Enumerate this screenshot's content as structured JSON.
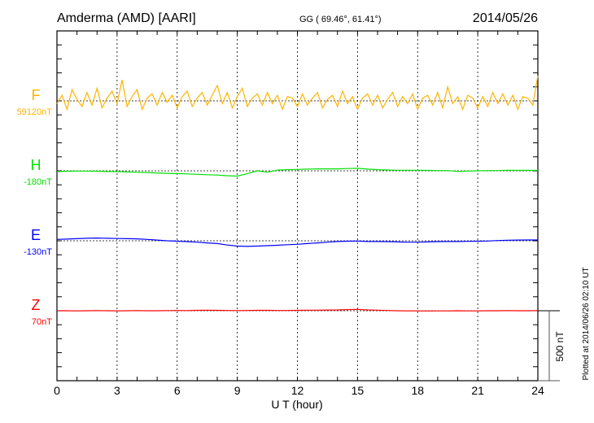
{
  "chart_data": {
    "type": "line",
    "title": "Amderma (AMD)  [AARI]",
    "coords": "GG ( 69.46°,  61.41°)",
    "date": "2014/05/26",
    "xlabel": "U T (hour)",
    "xlim": [
      0,
      24
    ],
    "xticks": [
      "0",
      "3",
      "6",
      "9",
      "12",
      "15",
      "18",
      "21",
      "24"
    ],
    "ylim_nT_span": 2500,
    "scale_bar_label": "500 nT",
    "scale_bar_nT": 500,
    "footer": "Plotted at 2014/06/26 02:10 UT",
    "grid": "dotted vertical every 3 h",
    "series": [
      {
        "name": "F",
        "baseline_label": "59120nT",
        "color": "#ffb400",
        "offset_nT": 500,
        "dt_hours": 0.25,
        "values": [
          -20,
          40,
          -60,
          80,
          10,
          -40,
          60,
          -30,
          90,
          -50,
          20,
          70,
          -20,
          150,
          -40,
          30,
          80,
          -60,
          20,
          50,
          -30,
          60,
          -10,
          40,
          -50,
          30,
          70,
          -40,
          20,
          60,
          -30,
          40,
          110,
          -20,
          60,
          -50,
          30,
          90,
          -40,
          20,
          50,
          -30,
          60,
          -20,
          40,
          -60,
          30,
          20,
          -40,
          50,
          -30,
          20,
          60,
          -50,
          10,
          40,
          -40,
          70,
          -20,
          30,
          -60,
          20,
          50,
          -30,
          40,
          -50,
          10,
          60,
          -40,
          30,
          -20,
          50,
          -60,
          20,
          40,
          -30,
          60,
          -50,
          100,
          -20,
          30,
          -60,
          40,
          20,
          -50,
          30,
          -40,
          60,
          -20,
          50,
          -30,
          40,
          -60,
          30,
          20,
          -30,
          180
        ]
      },
      {
        "name": "H",
        "baseline_label": "-180nT",
        "color": "#00e000",
        "offset_nT": 1000,
        "dt_hours": 0.5,
        "values": [
          -5,
          -3,
          -2,
          -2,
          -3,
          -5,
          -5,
          -8,
          -10,
          -12,
          -15,
          -18,
          -20,
          -22,
          -25,
          -28,
          -30,
          -35,
          -38,
          -20,
          0,
          -10,
          5,
          8,
          10,
          12,
          14,
          14,
          14,
          16,
          18,
          12,
          8,
          6,
          4,
          4,
          4,
          3,
          2,
          2,
          -4,
          -2,
          0,
          2,
          2,
          4,
          3,
          4,
          3
        ]
      },
      {
        "name": "E",
        "baseline_label": "-130nT",
        "color": "#0000ff",
        "offset_nT": 1500,
        "dt_hours": 0.5,
        "values": [
          10,
          12,
          15,
          18,
          20,
          18,
          16,
          15,
          14,
          10,
          5,
          0,
          -3,
          -6,
          -10,
          -15,
          -20,
          -30,
          -38,
          -40,
          -38,
          -35,
          -32,
          -28,
          -25,
          -20,
          -15,
          -10,
          -5,
          -3,
          -2,
          -5,
          -5,
          -6,
          -8,
          -10,
          -10,
          -8,
          -6,
          -5,
          -5,
          -4,
          -3,
          -2,
          2,
          4,
          5,
          6,
          6
        ]
      },
      {
        "name": "Z",
        "baseline_label": "70nT",
        "color": "#ff0000",
        "offset_nT": 2000,
        "dt_hours": 0.5,
        "values": [
          0,
          0,
          -1,
          0,
          1,
          0,
          -1,
          0,
          1,
          0,
          0,
          1,
          2,
          1,
          3,
          4,
          3,
          2,
          1,
          2,
          3,
          3,
          2,
          2,
          3,
          4,
          4,
          5,
          6,
          8,
          10,
          6,
          4,
          2,
          0,
          -1,
          -1,
          -2,
          -1,
          -1,
          0,
          -1,
          -1,
          0,
          0,
          1,
          0,
          0,
          1
        ]
      }
    ]
  }
}
